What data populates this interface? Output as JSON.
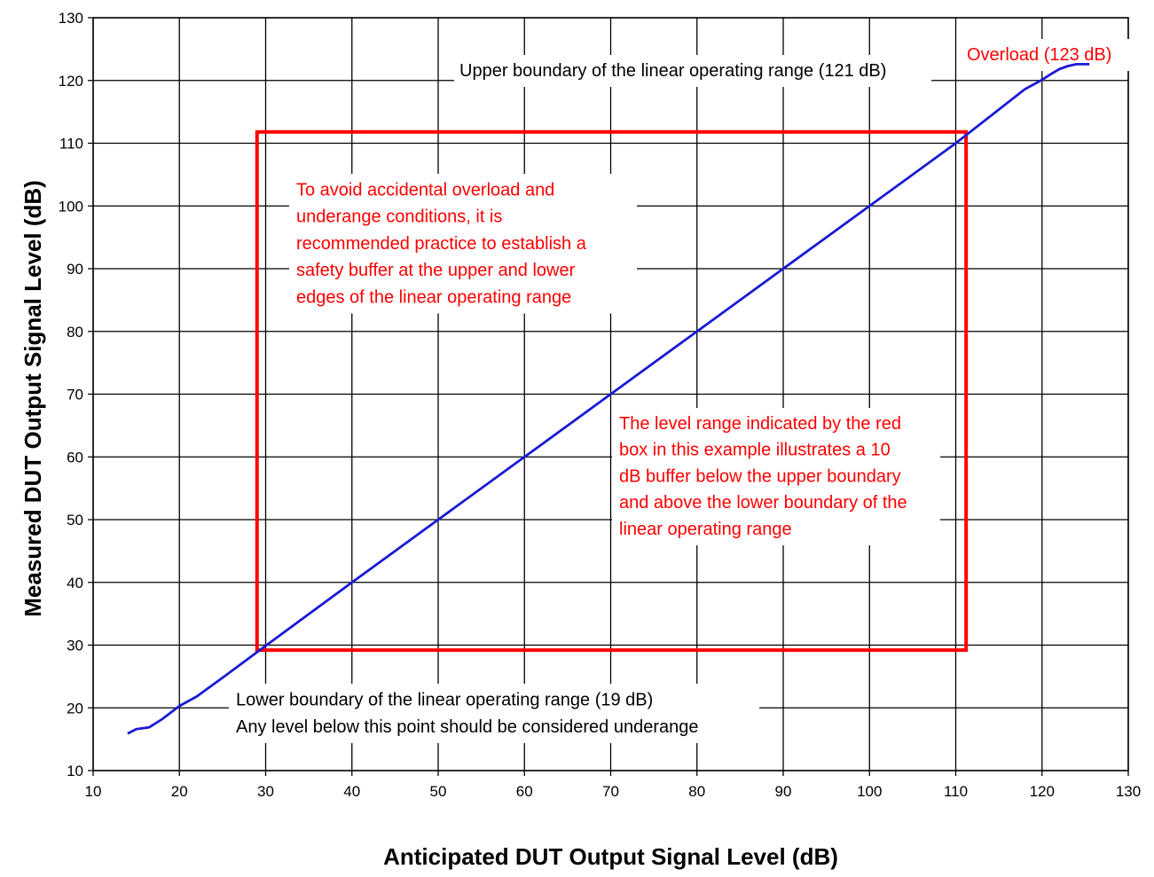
{
  "chart_data": {
    "type": "line",
    "xlabel": "Anticipated DUT Output Signal Level (dB)",
    "ylabel": "Measured DUT Output Signal Level (dB)",
    "xlim": [
      10,
      130
    ],
    "ylim": [
      10,
      130
    ],
    "xticks": [
      10,
      20,
      30,
      40,
      50,
      60,
      70,
      80,
      90,
      100,
      110,
      120,
      130
    ],
    "yticks": [
      10,
      20,
      30,
      40,
      50,
      60,
      70,
      80,
      90,
      100,
      110,
      120,
      130
    ],
    "grid": true,
    "series": [
      {
        "color": "#1a1ad6",
        "x": [
          14,
          15,
          16.5,
          18,
          20,
          22,
          25,
          30,
          40,
          50,
          60,
          70,
          80,
          90,
          100,
          110,
          118,
          120,
          121,
          122,
          123,
          124,
          125.5
        ],
        "y": [
          15.9,
          16.6,
          16.9,
          18.2,
          20.3,
          21.8,
          24.8,
          29.9,
          40,
          50,
          60,
          70,
          80,
          90,
          100,
          110,
          118.6,
          120.1,
          121,
          121.8,
          122.3,
          122.6,
          122.6
        ]
      }
    ],
    "box": {
      "color": "#ff0000",
      "x": [
        29,
        111.2
      ],
      "y": [
        29.2,
        111.8
      ]
    },
    "annotations": [
      {
        "id": "upper",
        "color": "#000000",
        "lines": [
          "Upper boundary of the linear operating range (121 dB)"
        ]
      },
      {
        "id": "overload",
        "color": "#ff0000",
        "lines": [
          "Overload (123 dB)"
        ]
      },
      {
        "id": "avoid",
        "color": "#ff0000",
        "lines": [
          "To avoid accidental overload and",
          "underange conditions, it is",
          "recommended practice to establish a",
          "safety buffer at the upper and lower",
          "edges of the linear operating range"
        ]
      },
      {
        "id": "redbox",
        "color": "#ff0000",
        "lines": [
          "The level range indicated by the red",
          "box in this example illustrates a 10",
          "dB buffer below the upper boundary",
          "and above the lower boundary of the",
          "linear operating range"
        ]
      },
      {
        "id": "lower",
        "color": "#000000",
        "lines": [
          "Lower boundary of the linear operating range (19 dB)",
          "Any level below this point should be considered underange"
        ]
      }
    ]
  }
}
